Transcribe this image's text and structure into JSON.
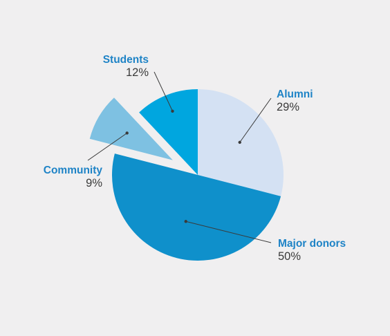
{
  "chart_data": {
    "type": "pie",
    "title": "",
    "slices": [
      {
        "label": "Alumni",
        "value": 29,
        "display": "29%",
        "color": "#d4e1f3",
        "label_color": "#1e83c6",
        "exploded": false
      },
      {
        "label": "Major donors",
        "value": 50,
        "display": "50%",
        "color": "#0f90cb",
        "label_color": "#1e83c6",
        "exploded": false
      },
      {
        "label": "Community",
        "value": 9,
        "display": "9%",
        "color": "#7ec1e2",
        "label_color": "#1e83c6",
        "exploded": true
      },
      {
        "label": "Students",
        "value": 12,
        "display": "12%",
        "color": "#00a6df",
        "label_color": "#1e83c6",
        "exploded": false
      }
    ],
    "start_angle_deg": 0,
    "direction": "clockwise",
    "leader_line_color": "#3a3a3a"
  }
}
